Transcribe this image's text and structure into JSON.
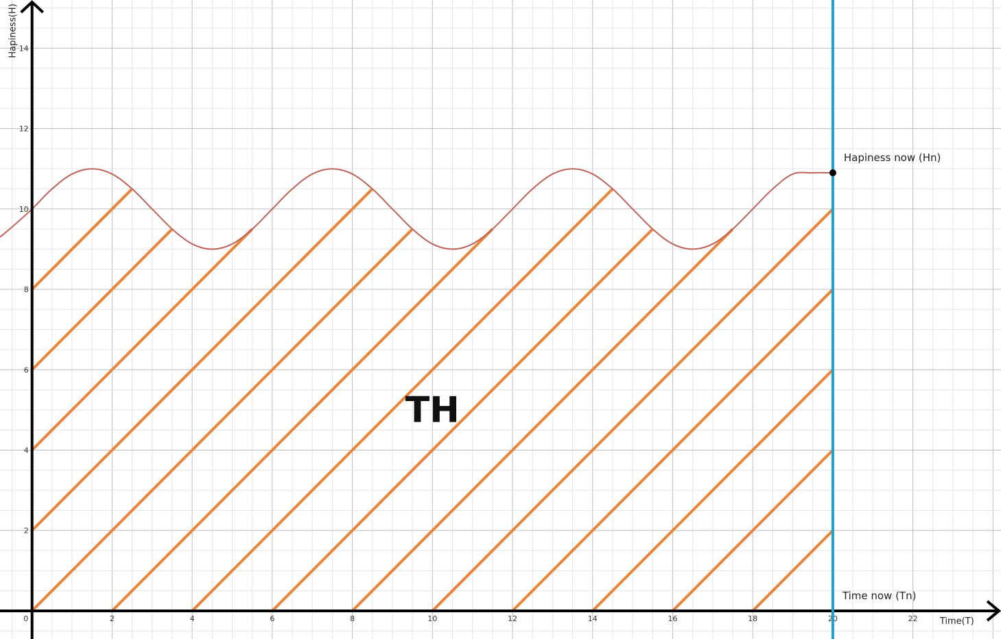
{
  "chart_data": {
    "type": "line",
    "title": "",
    "xlabel": "Time(T)",
    "ylabel": "Hapiness(H)",
    "xlim": [
      -0.8,
      24.2
    ],
    "ylim": [
      -0.7,
      15.2
    ],
    "grid": true,
    "x_ticks": [
      {
        "value": 0,
        "label": "0"
      },
      {
        "value": 2,
        "label": "2"
      },
      {
        "value": 4,
        "label": "4"
      },
      {
        "value": 6,
        "label": "6"
      },
      {
        "value": 8,
        "label": "8"
      },
      {
        "value": 10,
        "label": "10"
      },
      {
        "value": 12,
        "label": "12"
      },
      {
        "value": 14,
        "label": "14"
      },
      {
        "value": 16,
        "label": "16"
      },
      {
        "value": 18,
        "label": "18"
      },
      {
        "value": 20,
        "label": "20"
      },
      {
        "value": 22,
        "label": "22"
      }
    ],
    "y_ticks": [
      {
        "value": 2,
        "label": "2"
      },
      {
        "value": 4,
        "label": "4"
      },
      {
        "value": 6,
        "label": "6"
      },
      {
        "value": 8,
        "label": "8"
      },
      {
        "value": 10,
        "label": "10"
      },
      {
        "value": 12,
        "label": "12"
      },
      {
        "value": 14,
        "label": "14"
      }
    ],
    "series": [
      {
        "color": "#c0625a",
        "x": [
          -0.8,
          -0.5,
          0,
          0.5,
          1,
          1.5,
          2,
          2.5,
          3,
          3.5,
          4,
          4.5,
          5,
          5.5,
          6,
          6.5,
          7,
          7.5,
          8,
          8.5,
          9,
          9.5,
          10,
          10.5,
          11,
          11.5,
          12,
          12.5,
          13,
          13.5,
          14,
          14.5,
          15,
          15.5,
          16,
          16.5,
          17,
          17.5,
          18,
          18.5,
          19,
          19.5,
          20
        ],
        "y": [
          9.3,
          9.55,
          10.0,
          10.5,
          10.87,
          11.0,
          10.87,
          10.5,
          10.0,
          9.5,
          9.13,
          9.0,
          9.13,
          9.5,
          10.0,
          10.5,
          10.87,
          11.0,
          10.87,
          10.5,
          10.0,
          9.5,
          9.13,
          9.0,
          9.13,
          9.5,
          10.0,
          10.5,
          10.87,
          11.0,
          10.87,
          10.5,
          10.0,
          9.5,
          9.13,
          9.0,
          9.13,
          9.5,
          10.0,
          10.5,
          10.87,
          10.9,
          10.9
        ]
      }
    ],
    "marker_point": {
      "x": 20,
      "y": 10.9,
      "label": "Hapiness now (Hn)"
    },
    "vertical_line": {
      "x": 20,
      "label": "Time now (Tn)",
      "color": "#1ea0c8"
    },
    "shaded_region": {
      "x_from": 0,
      "x_to": 20,
      "label": "TH",
      "hatch_color": "#e8853a"
    }
  }
}
